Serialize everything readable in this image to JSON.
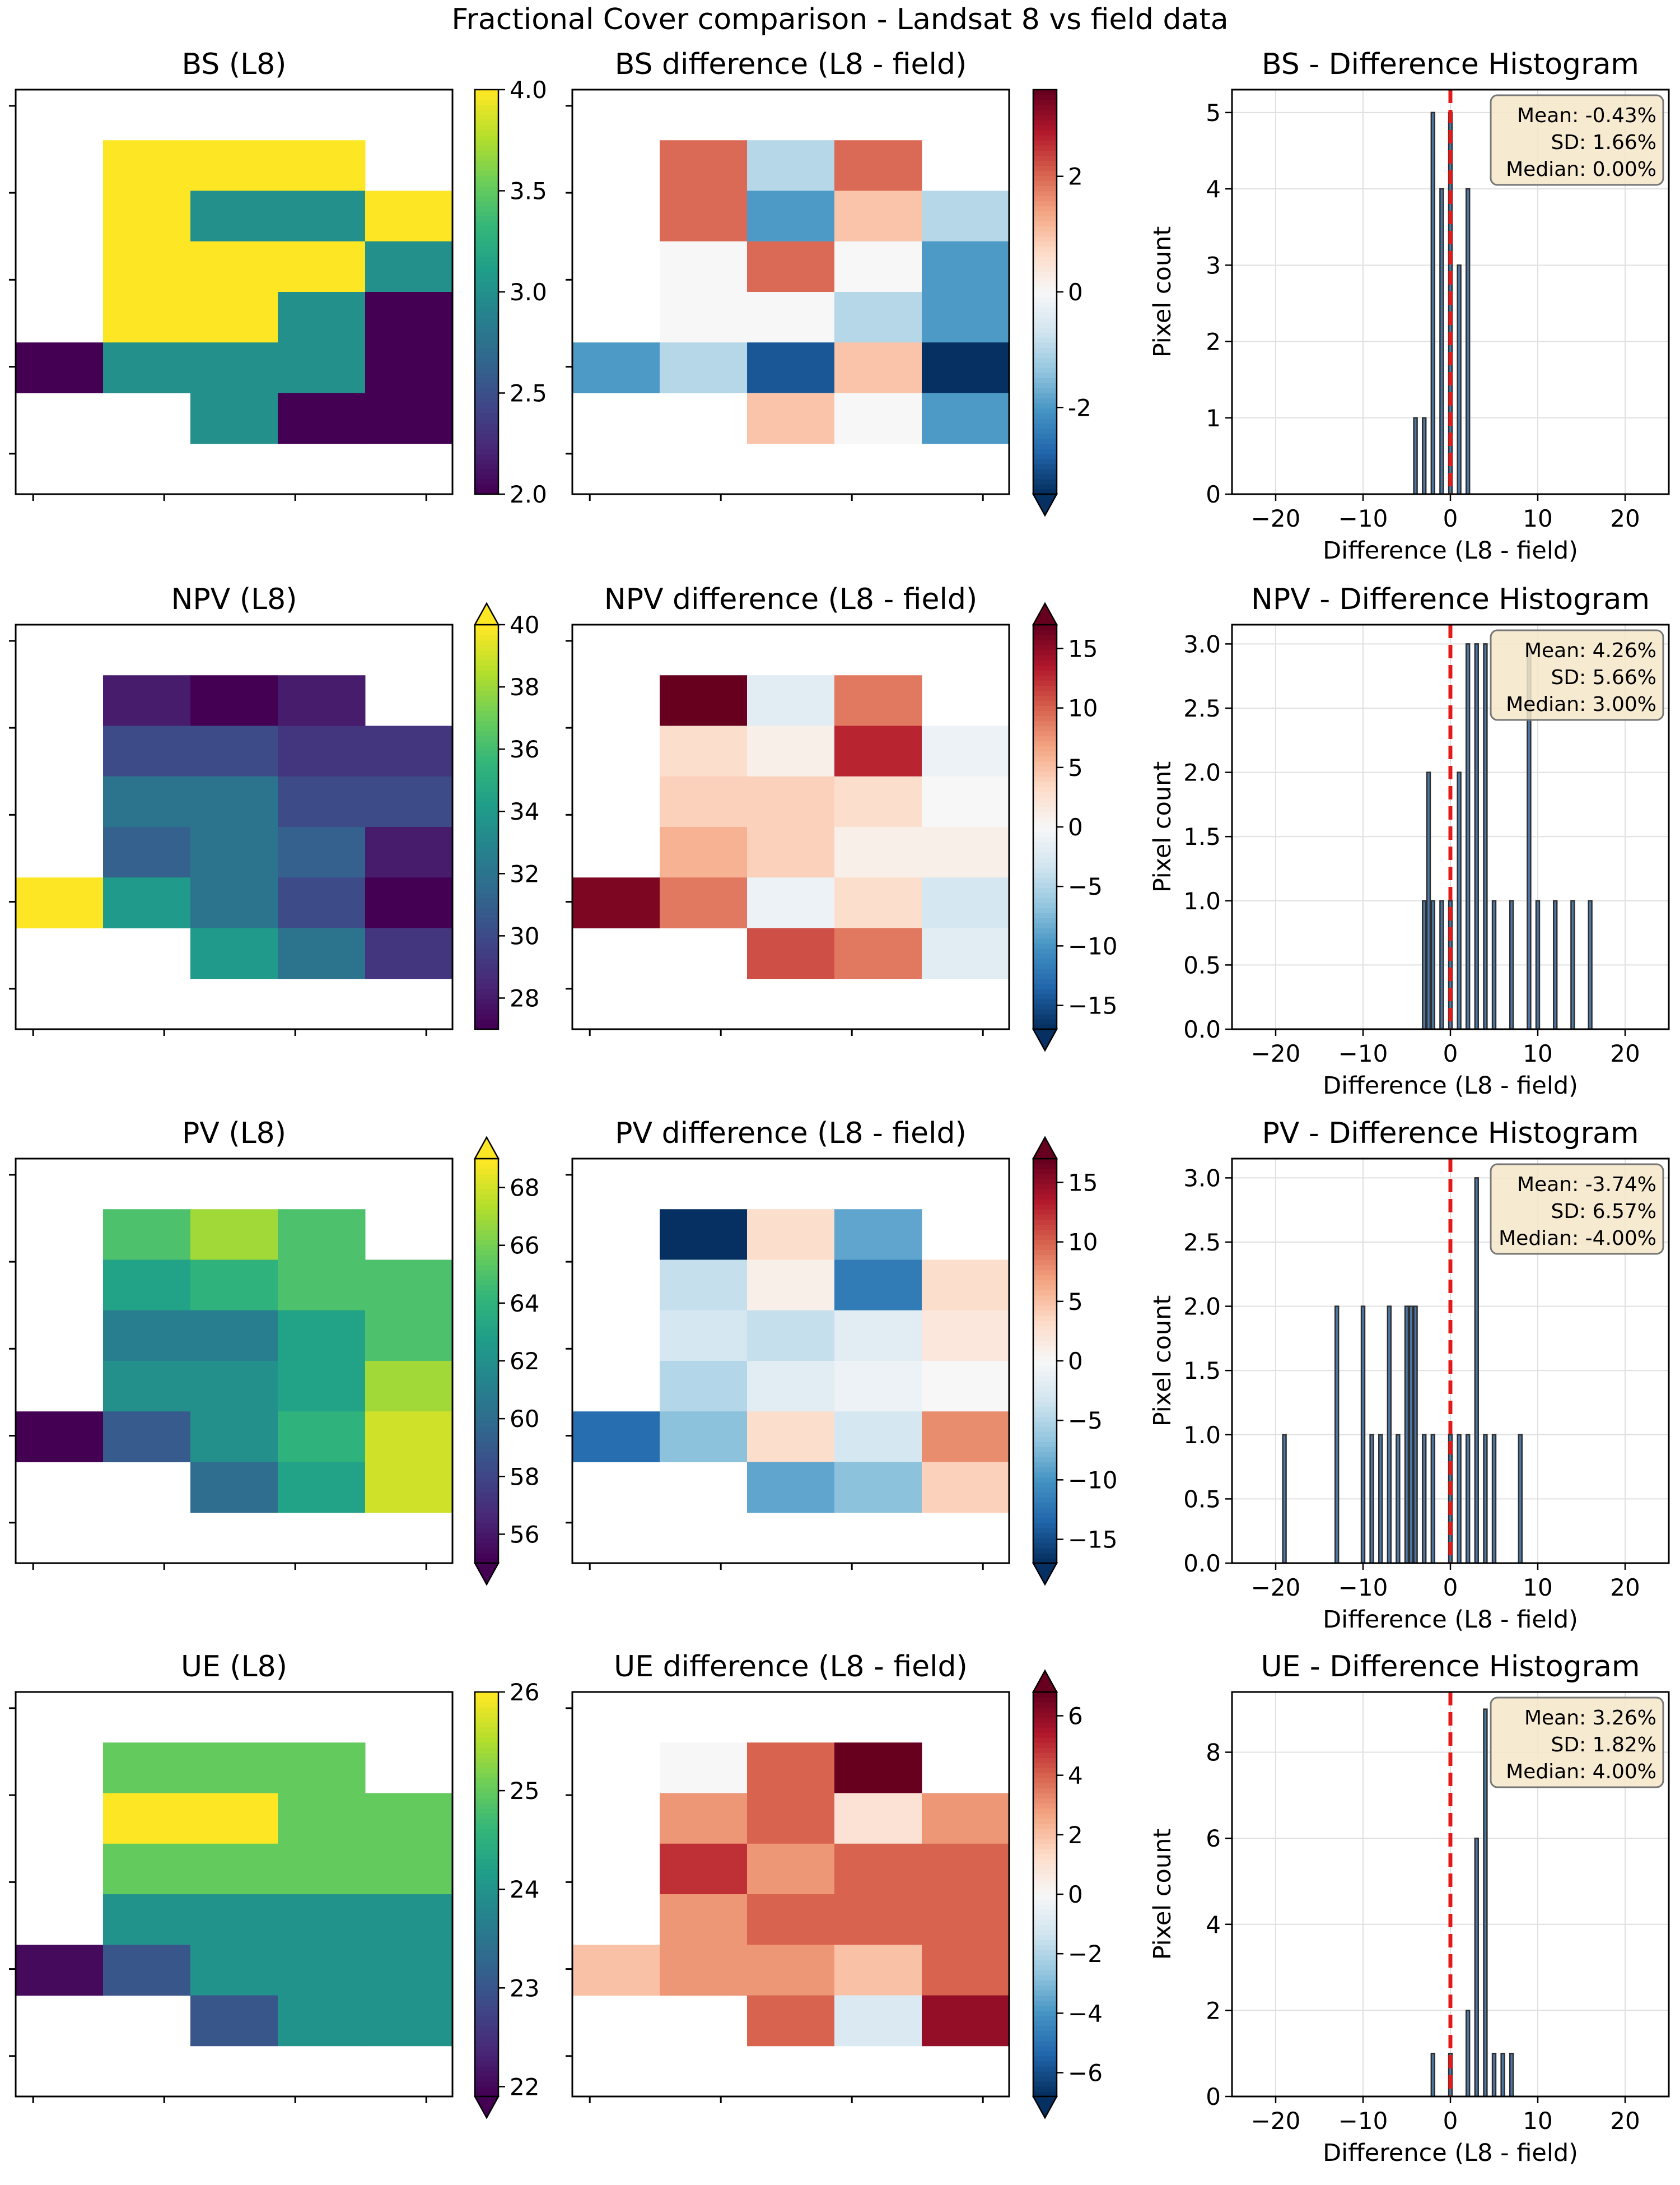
{
  "figure": {
    "suptitle": "Fractional Cover comparison - Landsat 8 vs field data",
    "hist_xlabel": "Difference (L8 - field)",
    "hist_ylabel": "Pixel count"
  },
  "colors": {
    "ref_line": "#e41a1a",
    "hist_bar_edge": "#2f2f2f",
    "hist_bar_fill": "#4c78a8",
    "stats_box_fill": "#f5e6c8",
    "stats_box_edge": "#777777",
    "grid": "#e0e0e0"
  },
  "chart_data": [
    {
      "id": "bs",
      "cover_map": {
        "type": "heatmap",
        "title": "BS (L8)",
        "colormap": "viridis",
        "vmin": 2.0,
        "vmax": 4.0,
        "extend": "neither",
        "colorbar_ticks": [
          "2.0",
          "2.5",
          "3.0",
          "3.5",
          "4.0"
        ],
        "grid": [
          [
            null,
            null,
            null,
            null,
            null
          ],
          [
            null,
            4,
            4,
            4,
            null
          ],
          [
            null,
            4,
            3,
            3,
            4
          ],
          [
            null,
            4,
            4,
            4,
            3
          ],
          [
            null,
            4,
            4,
            3,
            2
          ],
          [
            2,
            3,
            3,
            3,
            2
          ],
          [
            null,
            null,
            3,
            2,
            2
          ],
          [
            null,
            null,
            null,
            null,
            null
          ]
        ]
      },
      "difference_map": {
        "type": "heatmap",
        "title": "BS difference (L8 - field)",
        "colormap": "RdBu_r",
        "vmin": -3.5,
        "vmax": 3.5,
        "extend": "min",
        "colorbar_ticks": [
          "-2",
          "0",
          "2"
        ],
        "colorbar_tick_values": [
          -2,
          0,
          2
        ],
        "grid": [
          [
            null,
            null,
            null,
            null,
            null
          ],
          [
            null,
            2,
            -1,
            2,
            null
          ],
          [
            null,
            2,
            -2,
            1,
            -1
          ],
          [
            null,
            0,
            2,
            0,
            -2
          ],
          [
            null,
            0,
            0,
            -1,
            -2
          ],
          [
            -2,
            -1,
            -3,
            1,
            -4
          ],
          [
            null,
            null,
            1,
            0,
            -2
          ],
          [
            null,
            null,
            null,
            null,
            null
          ]
        ]
      },
      "histogram": {
        "type": "bar",
        "title": "BS - Difference Histogram",
        "xlabel": "Difference (L8 - field)",
        "ylabel": "Pixel count",
        "xlim": [
          -25,
          25
        ],
        "ylim": [
          0,
          5.3
        ],
        "xticks": [
          -20,
          -10,
          0,
          10,
          20
        ],
        "xtick_labels": [
          "−20",
          "−10",
          "0",
          "10",
          "20"
        ],
        "yticks": [
          0,
          1,
          2,
          3,
          4,
          5
        ],
        "ytick_labels": [
          "0",
          "1",
          "2",
          "3",
          "4",
          "5"
        ],
        "bars": [
          {
            "x": -4,
            "count": 1
          },
          {
            "x": -3,
            "count": 1
          },
          {
            "x": -2,
            "count": 5
          },
          {
            "x": -1,
            "count": 4
          },
          {
            "x": 0,
            "count": 5
          },
          {
            "x": 1,
            "count": 3
          },
          {
            "x": 2,
            "count": 4
          }
        ],
        "stats": [
          "Mean: -0.43%",
          "SD: 1.66%",
          "Median: 0.00%"
        ],
        "reference_line_x": 0
      }
    },
    {
      "id": "npv",
      "cover_map": {
        "type": "heatmap",
        "title": "NPV (L8)",
        "colormap": "viridis",
        "vmin": 27,
        "vmax": 40,
        "extend": "max",
        "colorbar_ticks": [
          "28",
          "30",
          "32",
          "34",
          "36",
          "38",
          "40"
        ],
        "grid": [
          [
            null,
            null,
            null,
            null,
            null
          ],
          [
            null,
            28,
            27,
            28,
            null
          ],
          [
            null,
            30,
            30,
            29,
            29
          ],
          [
            null,
            32,
            32,
            30,
            30
          ],
          [
            null,
            31,
            32,
            31,
            28
          ],
          [
            40,
            34,
            32,
            30,
            27
          ],
          [
            null,
            null,
            34,
            32,
            29
          ],
          [
            null,
            null,
            null,
            null,
            null
          ]
        ]
      },
      "difference_map": {
        "type": "heatmap",
        "title": "NPV difference (L8 - field)",
        "colormap": "RdBu_r",
        "vmin": -17,
        "vmax": 17,
        "extend": "both",
        "colorbar_ticks": [
          "−15",
          "−10",
          "−5",
          "0",
          "5",
          "10",
          "15"
        ],
        "colorbar_tick_values": [
          -15,
          -10,
          -5,
          0,
          5,
          10,
          15
        ],
        "grid": [
          [
            null,
            null,
            null,
            null,
            null
          ],
          [
            null,
            17,
            -2,
            9,
            null
          ],
          [
            null,
            3,
            1,
            13,
            -1
          ],
          [
            null,
            4,
            4,
            3,
            0
          ],
          [
            null,
            6,
            4,
            1,
            1
          ],
          [
            16,
            9,
            -1,
            3,
            -3
          ],
          [
            null,
            null,
            11,
            9,
            -2
          ],
          [
            null,
            null,
            null,
            null,
            null
          ]
        ]
      },
      "histogram": {
        "type": "bar",
        "title": "NPV - Difference Histogram",
        "xlabel": "Difference (L8 - field)",
        "ylabel": "Pixel count",
        "xlim": [
          -25,
          25
        ],
        "ylim": [
          0,
          3.15
        ],
        "xticks": [
          -20,
          -10,
          0,
          10,
          20
        ],
        "xtick_labels": [
          "−20",
          "−10",
          "0",
          "10",
          "20"
        ],
        "yticks": [
          0,
          0.5,
          1,
          1.5,
          2,
          2.5,
          3
        ],
        "ytick_labels": [
          "0.0",
          "0.5",
          "1.0",
          "1.5",
          "2.0",
          "2.5",
          "3.0"
        ],
        "bars": [
          {
            "x": -3,
            "count": 1
          },
          {
            "x": -2.5,
            "count": 2
          },
          {
            "x": -2,
            "count": 1
          },
          {
            "x": -1,
            "count": 1
          },
          {
            "x": 0,
            "count": 1
          },
          {
            "x": 1,
            "count": 2
          },
          {
            "x": 2,
            "count": 3
          },
          {
            "x": 3,
            "count": 3
          },
          {
            "x": 4,
            "count": 3
          },
          {
            "x": 5,
            "count": 1
          },
          {
            "x": 7,
            "count": 1
          },
          {
            "x": 9,
            "count": 3
          },
          {
            "x": 10,
            "count": 1
          },
          {
            "x": 12,
            "count": 1
          },
          {
            "x": 14,
            "count": 1
          },
          {
            "x": 16,
            "count": 1
          }
        ],
        "stats": [
          "Mean: 4.26%",
          "SD: 5.66%",
          "Median: 3.00%"
        ],
        "reference_line_x": 0
      }
    },
    {
      "id": "pv",
      "cover_map": {
        "type": "heatmap",
        "title": "PV (L8)",
        "colormap": "viridis",
        "vmin": 55,
        "vmax": 69,
        "extend": "both",
        "colorbar_ticks": [
          "56",
          "58",
          "60",
          "62",
          "64",
          "66",
          "68"
        ],
        "grid": [
          [
            null,
            null,
            null,
            null,
            null
          ],
          [
            null,
            65,
            67,
            65,
            null
          ],
          [
            null,
            63,
            64,
            65,
            65
          ],
          [
            null,
            61,
            61,
            63,
            65
          ],
          [
            null,
            62,
            62,
            63,
            67
          ],
          [
            55,
            59,
            62,
            64,
            68
          ],
          [
            null,
            null,
            60,
            63,
            68
          ],
          [
            null,
            null,
            null,
            null,
            null
          ]
        ]
      },
      "difference_map": {
        "type": "heatmap",
        "title": "PV difference (L8 - field)",
        "colormap": "RdBu_r",
        "vmin": -17,
        "vmax": 17,
        "extend": "both",
        "colorbar_ticks": [
          "−15",
          "−10",
          "−5",
          "0",
          "5",
          "10",
          "15"
        ],
        "colorbar_tick_values": [
          -15,
          -10,
          -5,
          0,
          5,
          10,
          15
        ],
        "grid": [
          [
            null,
            null,
            null,
            null,
            null
          ],
          [
            null,
            -17,
            3,
            -9,
            null
          ],
          [
            null,
            -4,
            1,
            -12,
            3
          ],
          [
            null,
            -3,
            -4,
            -2,
            2
          ],
          [
            null,
            -5,
            -2,
            -1,
            0
          ],
          [
            -13,
            -7,
            3,
            -3,
            8
          ],
          [
            null,
            null,
            -9,
            -7,
            4
          ],
          [
            null,
            null,
            null,
            null,
            null
          ]
        ]
      },
      "histogram": {
        "type": "bar",
        "title": "PV - Difference Histogram",
        "xlabel": "Difference (L8 - field)",
        "ylabel": "Pixel count",
        "xlim": [
          -25,
          25
        ],
        "ylim": [
          0,
          3.15
        ],
        "xticks": [
          -20,
          -10,
          0,
          10,
          20
        ],
        "xtick_labels": [
          "−20",
          "−10",
          "0",
          "10",
          "20"
        ],
        "yticks": [
          0,
          0.5,
          1,
          1.5,
          2,
          2.5,
          3
        ],
        "ytick_labels": [
          "0.0",
          "0.5",
          "1.0",
          "1.5",
          "2.0",
          "2.5",
          "3.0"
        ],
        "bars": [
          {
            "x": -19,
            "count": 1
          },
          {
            "x": -13,
            "count": 2
          },
          {
            "x": -10,
            "count": 2
          },
          {
            "x": -9,
            "count": 1
          },
          {
            "x": -8,
            "count": 1
          },
          {
            "x": -7,
            "count": 2
          },
          {
            "x": -6,
            "count": 1
          },
          {
            "x": -5,
            "count": 2
          },
          {
            "x": -4.5,
            "count": 2
          },
          {
            "x": -4,
            "count": 2
          },
          {
            "x": -3,
            "count": 1
          },
          {
            "x": -2,
            "count": 1
          },
          {
            "x": 0,
            "count": 1
          },
          {
            "x": 1,
            "count": 1
          },
          {
            "x": 2,
            "count": 1
          },
          {
            "x": 3,
            "count": 3
          },
          {
            "x": 4,
            "count": 1
          },
          {
            "x": 5,
            "count": 1
          },
          {
            "x": 8,
            "count": 1
          }
        ],
        "stats": [
          "Mean: -3.74%",
          "SD: 6.57%",
          "Median: -4.00%"
        ],
        "reference_line_x": 0
      }
    },
    {
      "id": "ue",
      "cover_map": {
        "type": "heatmap",
        "title": "UE (L8)",
        "colormap": "viridis",
        "vmin": 21.9,
        "vmax": 26,
        "extend": "min",
        "colorbar_ticks": [
          "22",
          "23",
          "24",
          "25",
          "26"
        ],
        "grid": [
          [
            null,
            null,
            null,
            null,
            null
          ],
          [
            null,
            25,
            25,
            25,
            null
          ],
          [
            null,
            26,
            26,
            25,
            25
          ],
          [
            null,
            25,
            25,
            25,
            25
          ],
          [
            null,
            24,
            24,
            24,
            24
          ],
          [
            22,
            23,
            24,
            24,
            24
          ],
          [
            null,
            null,
            23,
            24,
            24
          ],
          [
            null,
            null,
            null,
            null,
            null
          ]
        ]
      },
      "difference_map": {
        "type": "heatmap",
        "title": "UE difference (L8 - field)",
        "colormap": "RdBu_r",
        "vmin": -6.8,
        "vmax": 6.8,
        "extend": "both",
        "colorbar_ticks": [
          "−6",
          "−4",
          "−2",
          "0",
          "2",
          "4",
          "6"
        ],
        "colorbar_tick_values": [
          -6,
          -4,
          -2,
          0,
          2,
          4,
          6
        ],
        "grid": [
          [
            null,
            null,
            null,
            null,
            null
          ],
          [
            null,
            0,
            4,
            7,
            null
          ],
          [
            null,
            3,
            4,
            1,
            3
          ],
          [
            null,
            5,
            3,
            4,
            4
          ],
          [
            null,
            3,
            4,
            4,
            4
          ],
          [
            2,
            3,
            3,
            2,
            4
          ],
          [
            null,
            null,
            4,
            -1,
            6
          ],
          [
            null,
            null,
            null,
            null,
            null
          ]
        ]
      },
      "histogram": {
        "type": "bar",
        "title": "UE - Difference Histogram",
        "xlabel": "Difference (L8 - field)",
        "ylabel": "Pixel count",
        "xlim": [
          -25,
          25
        ],
        "ylim": [
          0,
          9.4
        ],
        "xticks": [
          -20,
          -10,
          0,
          10,
          20
        ],
        "xtick_labels": [
          "−20",
          "−10",
          "0",
          "10",
          "20"
        ],
        "yticks": [
          0,
          2,
          4,
          6,
          8
        ],
        "ytick_labels": [
          "0",
          "2",
          "4",
          "6",
          "8"
        ],
        "bars": [
          {
            "x": -2,
            "count": 1
          },
          {
            "x": 0,
            "count": 1
          },
          {
            "x": 2,
            "count": 2
          },
          {
            "x": 3,
            "count": 6
          },
          {
            "x": 4,
            "count": 9
          },
          {
            "x": 5,
            "count": 1
          },
          {
            "x": 6,
            "count": 1
          },
          {
            "x": 7,
            "count": 1
          }
        ],
        "stats": [
          "Mean: 3.26%",
          "SD: 1.82%",
          "Median: 4.00%"
        ],
        "reference_line_x": 0
      }
    }
  ]
}
